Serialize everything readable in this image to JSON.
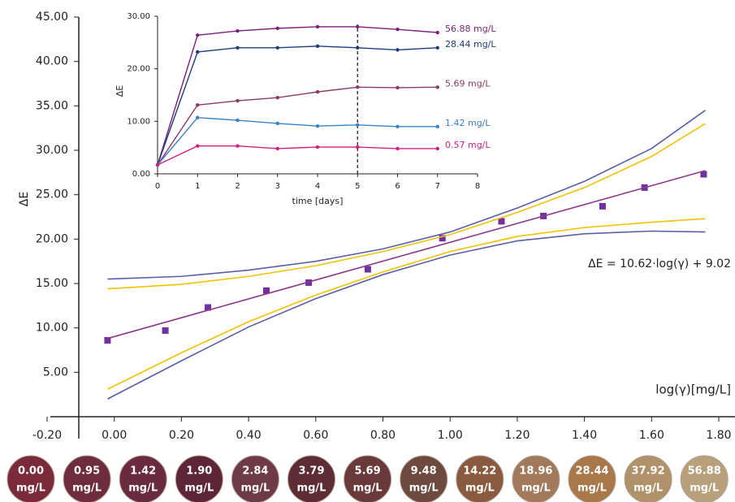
{
  "chart_data": [
    {
      "type": "scatter",
      "ylabel": "ΔE",
      "xlabel": "log(γ)[mg/L]",
      "annotation": "ΔE = 10.62·log(γ) + 9.02",
      "xlim": [
        -0.2,
        1.8
      ],
      "ylim": [
        0,
        45
      ],
      "xticks": [
        {
          "value": -0.2,
          "label": "-0.20"
        },
        {
          "value": 0,
          "label": "0.00"
        },
        {
          "value": 0.2,
          "label": "0.20"
        },
        {
          "value": 0.4,
          "label": "0.40"
        },
        {
          "value": 0.6,
          "label": "0.60"
        },
        {
          "value": 0.8,
          "label": "0.80"
        },
        {
          "value": 1,
          "label": "1.00"
        },
        {
          "value": 1.2,
          "label": "1.20"
        },
        {
          "value": 1.4,
          "label": "1.40"
        },
        {
          "value": 1.6,
          "label": "1.60"
        },
        {
          "value": 1.8,
          "label": "1.80"
        }
      ],
      "yticks": [
        {
          "value": 5,
          "label": "5.00"
        },
        {
          "value": 10,
          "label": "10.00"
        },
        {
          "value": 15,
          "label": "15.00"
        },
        {
          "value": 20,
          "label": "20.00"
        },
        {
          "value": 25,
          "label": "25.00"
        },
        {
          "value": 30,
          "label": "30.00"
        },
        {
          "value": 35,
          "label": "35.00"
        },
        {
          "value": 40,
          "label": "40.00"
        },
        {
          "value": 45,
          "label": "45.00"
        }
      ],
      "series": [
        {
          "color": "#7030a0",
          "marker": "square",
          "x": [
            -0.02,
            0.152,
            0.279,
            0.453,
            0.579,
            0.755,
            0.977,
            1.153,
            1.278,
            1.454,
            1.579,
            1.755
          ],
          "values": [
            8.6,
            9.7,
            12.3,
            14.2,
            15.1,
            16.6,
            20.1,
            22.0,
            22.6,
            23.7,
            25.8,
            27.3
          ]
        },
        {
          "color": "#8b3a8b",
          "x": [
            -0.02,
            1.76
          ],
          "values": [
            8.81,
            27.71
          ]
        },
        {
          "color": "#5b5ea6",
          "x": [
            -0.02,
            0.2,
            0.4,
            0.6,
            0.8,
            1.0,
            1.2,
            1.4,
            1.6,
            1.76
          ],
          "values": [
            15.5,
            15.8,
            16.5,
            17.5,
            18.9,
            20.8,
            23.5,
            26.5,
            30.2,
            34.5
          ]
        },
        {
          "color": "#f2c200",
          "x": [
            -0.02,
            0.2,
            0.4,
            0.6,
            0.8,
            1.0,
            1.2,
            1.4,
            1.6,
            1.76
          ],
          "values": [
            14.4,
            14.9,
            15.8,
            17.0,
            18.6,
            20.5,
            23.0,
            25.8,
            29.3,
            33.0
          ]
        },
        {
          "color": "#f2c200",
          "x": [
            -0.02,
            0.2,
            0.4,
            0.6,
            0.8,
            1.0,
            1.2,
            1.4,
            1.6,
            1.76
          ],
          "values": [
            3.1,
            7.2,
            10.7,
            13.7,
            16.3,
            18.6,
            20.3,
            21.3,
            21.9,
            22.3
          ]
        },
        {
          "color": "#5b5ea6",
          "x": [
            -0.02,
            0.2,
            0.4,
            0.6,
            0.8,
            1.0,
            1.2,
            1.4,
            1.6,
            1.76
          ],
          "values": [
            2.0,
            6.3,
            10.1,
            13.3,
            16.0,
            18.2,
            19.8,
            20.6,
            20.9,
            20.8
          ]
        }
      ]
    },
    {
      "type": "line",
      "ylabel": "ΔE",
      "xlabel": "time [days]",
      "xlim": [
        0,
        8
      ],
      "ylim": [
        0,
        30
      ],
      "xticks": [
        0,
        1,
        2,
        3,
        4,
        5,
        6,
        7,
        8
      ],
      "yticks": [
        {
          "value": 0,
          "label": "0.00"
        },
        {
          "value": 10,
          "label": "10.00"
        },
        {
          "value": 20,
          "label": "20.00"
        },
        {
          "value": 30,
          "label": "30.00"
        }
      ],
      "vline": 5,
      "x": [
        0,
        1,
        2,
        3,
        4,
        5,
        6,
        7
      ],
      "series": [
        {
          "name": "56.88 mg/L",
          "color": "#7b1f7a",
          "values": [
            1.7,
            26.4,
            27.2,
            27.7,
            28.0,
            28.0,
            27.5,
            26.9
          ]
        },
        {
          "name": "28.44 mg/L",
          "color": "#1f3d7a",
          "values": [
            1.7,
            23.2,
            24.0,
            24.0,
            24.3,
            24.0,
            23.6,
            24.0
          ]
        },
        {
          "name": "5.69 mg/L",
          "color": "#8b3a62",
          "values": [
            1.7,
            13.1,
            13.9,
            14.5,
            15.6,
            16.5,
            16.4,
            16.5
          ]
        },
        {
          "name": "1.42 mg/L",
          "color": "#3b82c4",
          "values": [
            1.7,
            10.7,
            10.2,
            9.6,
            9.1,
            9.3,
            9.0,
            9.0
          ]
        },
        {
          "name": "0.57 mg/L",
          "color": "#d0207f",
          "values": [
            1.7,
            5.3,
            5.3,
            4.8,
            5.1,
            5.1,
            4.8,
            4.8
          ]
        }
      ]
    }
  ],
  "samples": {
    "unit": "mg/L",
    "labels": [
      "0.00",
      "0.95",
      "1.42",
      "1.90",
      "2.84",
      "3.79",
      "5.69",
      "9.48",
      "14.22",
      "18.96",
      "28.44",
      "37.92",
      "56.88"
    ],
    "colors": [
      "#7a2a3a",
      "#6e2c3e",
      "#6a2a40",
      "#5e2538",
      "#6e3a48",
      "#5e2c34",
      "#6a3a3a",
      "#6e4a3e",
      "#8a5a40",
      "#a07a5a",
      "#a8784a",
      "#b0926a",
      "#b8a07a"
    ]
  }
}
